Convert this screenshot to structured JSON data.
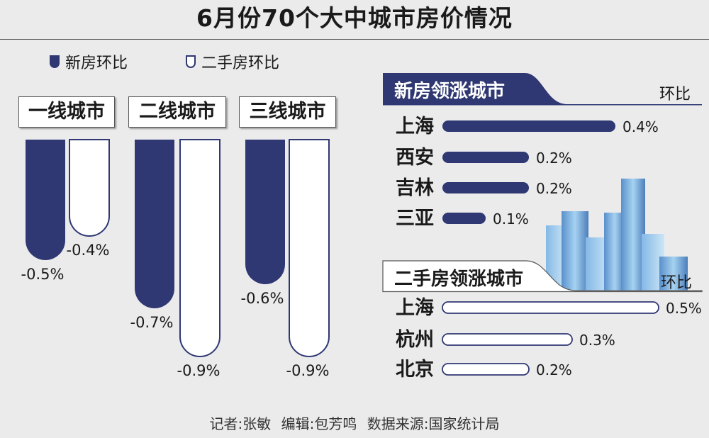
{
  "title": "6月份70个大中城市房价情况",
  "legend": {
    "new": "新房环比",
    "second": "二手房环比"
  },
  "colors": {
    "navy": "#2f3873",
    "outline": "#2f3873",
    "white": "#ffffff"
  },
  "tiers": {
    "t1": "一线城市",
    "t2": "二线城市",
    "t3": "三线城市"
  },
  "rank_new": {
    "title": "新房领涨城市",
    "unit": "环比"
  },
  "rank_second": {
    "title": "二手房领涨城市",
    "unit": "环比"
  },
  "footer": "记者:张敏 编辑:包芳鸣 数据来源:国家统计局",
  "chart_data": [
    {
      "type": "bar",
      "categories": [
        "一线城市",
        "二线城市",
        "三线城市"
      ],
      "series": [
        {
          "name": "新房环比",
          "values": [
            -0.5,
            -0.7,
            -0.6
          ],
          "labels": [
            "-0.5%",
            "-0.7%",
            "-0.6%"
          ]
        },
        {
          "name": "二手房环比",
          "values": [
            -0.4,
            -0.9,
            -0.9
          ],
          "labels": [
            "-0.4%",
            "-0.9%",
            "-0.9%"
          ]
        }
      ]
    },
    {
      "type": "bar",
      "title": "新房领涨城市",
      "ylabel": "环比",
      "categories": [
        "上海",
        "西安",
        "吉林",
        "三亚"
      ],
      "values": [
        0.4,
        0.2,
        0.2,
        0.1
      ],
      "labels": [
        "0.4%",
        "0.2%",
        "0.2%",
        "0.1%"
      ]
    },
    {
      "type": "bar",
      "title": "二手房领涨城市",
      "ylabel": "环比",
      "categories": [
        "上海",
        "杭州",
        "北京"
      ],
      "values": [
        0.5,
        0.3,
        0.2
      ],
      "labels": [
        "0.5%",
        "0.3%",
        "0.2%"
      ]
    }
  ]
}
